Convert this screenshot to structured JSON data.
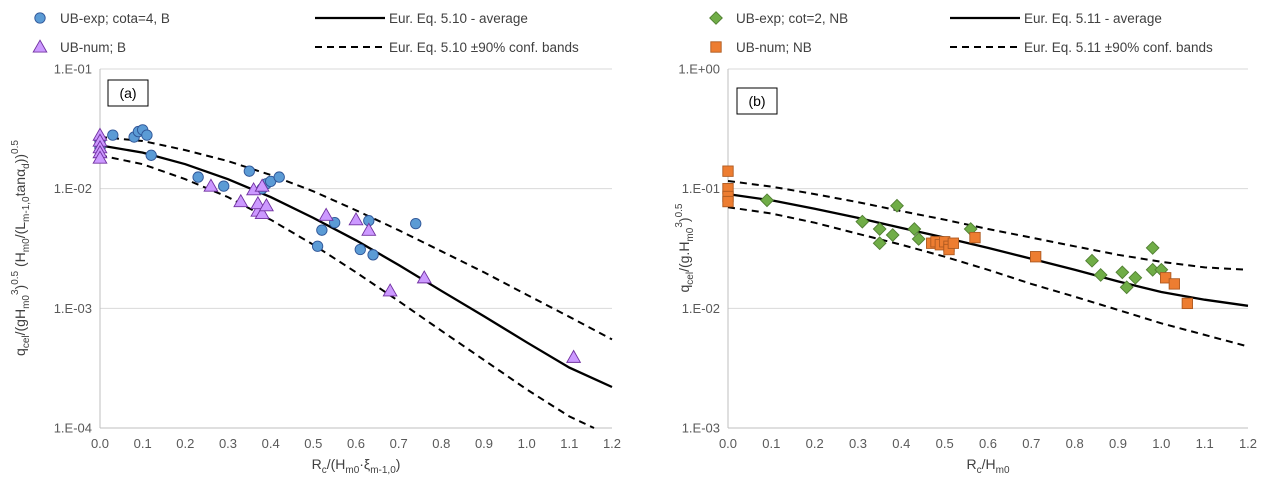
{
  "chart_data": [
    {
      "type": "scatter",
      "panel_label": "(a)",
      "xlim": [
        0,
        1.2
      ],
      "ylim": [
        0.0001,
        0.1
      ],
      "yscale": "log",
      "x_ticks": [
        "0.0",
        "0.1",
        "0.2",
        "0.3",
        "0.4",
        "0.5",
        "0.6",
        "0.7",
        "0.8",
        "0.9",
        "1.0",
        "1.1",
        "1.2"
      ],
      "y_ticks": [
        "1.E-04",
        "1.E-03",
        "1.E-02",
        "1.E-01"
      ],
      "xlabel": {
        "main": "R",
        "sub1": "c",
        "mid": "/(H",
        "sub2": "m0",
        "mid2": "·ξ",
        "sub3": "m-1,0",
        "end": ")"
      },
      "ylabel": {
        "p1": "q",
        "s1": "cel",
        "p2": "/(gH",
        "s2": "m0",
        "sup1": "3",
        "p3": ")",
        "sup2": "0.5",
        "p4": " (H",
        "s3": "m0",
        "p5": "/(L",
        "s4": "m-1,0",
        "p6": "tanα",
        "s5": "d",
        "p7": "))",
        "sup3": "0.5"
      },
      "grid": "horizontal major",
      "legend_position": "top",
      "series": [
        {
          "name": "UB-exp; cota=4, B",
          "marker": "circle",
          "color": "#5B9BD5",
          "points": [
            [
              0.0,
              0.022
            ],
            [
              0.0,
              0.025
            ],
            [
              0.03,
              0.028
            ],
            [
              0.08,
              0.027
            ],
            [
              0.09,
              0.03
            ],
            [
              0.1,
              0.031
            ],
            [
              0.11,
              0.028
            ],
            [
              0.12,
              0.019
            ],
            [
              0.23,
              0.0125
            ],
            [
              0.29,
              0.0105
            ],
            [
              0.35,
              0.014
            ],
            [
              0.38,
              0.01
            ],
            [
              0.39,
              0.011
            ],
            [
              0.4,
              0.0115
            ],
            [
              0.42,
              0.0125
            ],
            [
              0.51,
              0.0033
            ],
            [
              0.52,
              0.0045
            ],
            [
              0.55,
              0.0052
            ],
            [
              0.61,
              0.0031
            ],
            [
              0.63,
              0.0054
            ],
            [
              0.64,
              0.0028
            ],
            [
              0.74,
              0.0051
            ]
          ]
        },
        {
          "name": "UB-num; B",
          "marker": "triangle",
          "color": "#CC99FF",
          "points": [
            [
              0.0,
              0.028
            ],
            [
              0.0,
              0.025
            ],
            [
              0.0,
              0.022
            ],
            [
              0.0,
              0.02
            ],
            [
              0.0,
              0.018
            ],
            [
              0.26,
              0.0105
            ],
            [
              0.33,
              0.0078
            ],
            [
              0.36,
              0.0098
            ],
            [
              0.37,
              0.0065
            ],
            [
              0.37,
              0.0075
            ],
            [
              0.38,
              0.0062
            ],
            [
              0.38,
              0.0105
            ],
            [
              0.39,
              0.0072
            ],
            [
              0.53,
              0.006
            ],
            [
              0.6,
              0.0055
            ],
            [
              0.63,
              0.0045
            ],
            [
              0.68,
              0.0014
            ],
            [
              0.76,
              0.0018
            ],
            [
              1.11,
              0.00039
            ]
          ]
        }
      ],
      "lines": [
        {
          "name": "Eur. Eq. 5.10 - average",
          "style": "solid",
          "x": [
            0,
            0.1,
            0.2,
            0.3,
            0.4,
            0.5,
            0.6,
            0.7,
            0.8,
            0.9,
            1.0,
            1.1,
            1.2
          ],
          "y": [
            0.023,
            0.02,
            0.016,
            0.012,
            0.0085,
            0.0057,
            0.0037,
            0.0023,
            0.0014,
            0.00086,
            0.00052,
            0.00032,
            0.00022
          ]
        },
        {
          "name": "Eur. Eq. 5.10 ±90% conf. bands",
          "style": "dashed",
          "x": [
            0,
            0.1,
            0.2,
            0.3,
            0.4,
            0.5,
            0.6,
            0.7,
            0.8,
            0.9,
            1.0,
            1.1,
            1.2
          ],
          "y": [
            0.027,
            0.025,
            0.021,
            0.017,
            0.013,
            0.0095,
            0.0066,
            0.0045,
            0.003,
            0.002,
            0.0013,
            0.00085,
            0.00055
          ]
        },
        {
          "style": "dashed",
          "x": [
            0,
            0.1,
            0.2,
            0.3,
            0.4,
            0.5,
            0.6,
            0.7,
            0.8,
            0.9,
            1.0,
            1.1,
            1.2
          ],
          "y": [
            0.019,
            0.016,
            0.012,
            0.0085,
            0.0055,
            0.0034,
            0.002,
            0.00115,
            0.00065,
            0.00037,
            0.00021,
            0.000125,
            8.5e-05
          ]
        }
      ]
    },
    {
      "type": "scatter",
      "panel_label": "(b)",
      "xlim": [
        0,
        1.2
      ],
      "ylim": [
        0.001,
        1.0
      ],
      "yscale": "log",
      "x_ticks": [
        "0.0",
        "0.1",
        "0.2",
        "0.3",
        "0.4",
        "0.5",
        "0.6",
        "0.7",
        "0.8",
        "0.9",
        "1.0",
        "1.1",
        "1.2"
      ],
      "y_ticks": [
        "1.E-03",
        "1.E-02",
        "1.E-01",
        "1.E+00"
      ],
      "xlabel": {
        "main": "R",
        "sub1": "c",
        "mid": "/H",
        "sub2": "m0"
      },
      "ylabel": {
        "p1": "q",
        "s1": "cel",
        "p2": "/(g.H",
        "s2": "m0",
        "sup1": "3",
        "p3": ")",
        "sup2": "0.5"
      },
      "grid": "horizontal major",
      "legend_position": "top",
      "series": [
        {
          "name": "UB-exp; cot=2, NB",
          "marker": "diamond",
          "color": "#70AD47",
          "points": [
            [
              0.09,
              0.08
            ],
            [
              0.31,
              0.053
            ],
            [
              0.35,
              0.046
            ],
            [
              0.35,
              0.035
            ],
            [
              0.38,
              0.041
            ],
            [
              0.39,
              0.072
            ],
            [
              0.43,
              0.046
            ],
            [
              0.44,
              0.038
            ],
            [
              0.56,
              0.046
            ],
            [
              0.84,
              0.025
            ],
            [
              0.86,
              0.019
            ],
            [
              0.91,
              0.02
            ],
            [
              0.92,
              0.015
            ],
            [
              0.94,
              0.018
            ],
            [
              0.98,
              0.032
            ],
            [
              0.98,
              0.021
            ],
            [
              1.0,
              0.021
            ]
          ]
        },
        {
          "name": "UB-num; NB",
          "marker": "square",
          "color": "#ED7D31",
          "points": [
            [
              0.0,
              0.14
            ],
            [
              0.0,
              0.1
            ],
            [
              0.0,
              0.086
            ],
            [
              0.0,
              0.078
            ],
            [
              0.47,
              0.035
            ],
            [
              0.48,
              0.036
            ],
            [
              0.49,
              0.034
            ],
            [
              0.5,
              0.036
            ],
            [
              0.51,
              0.033
            ],
            [
              0.51,
              0.031
            ],
            [
              0.52,
              0.035
            ],
            [
              0.57,
              0.039
            ],
            [
              0.71,
              0.027
            ],
            [
              1.01,
              0.018
            ],
            [
              1.03,
              0.016
            ],
            [
              1.06,
              0.011
            ]
          ]
        }
      ],
      "lines": [
        {
          "name": "Eur. Eq. 5.11 - average",
          "style": "solid",
          "x": [
            0,
            0.1,
            0.2,
            0.3,
            0.4,
            0.5,
            0.6,
            0.7,
            0.8,
            0.9,
            1.0,
            1.1,
            1.2
          ],
          "y": [
            0.09,
            0.08,
            0.068,
            0.057,
            0.047,
            0.039,
            0.032,
            0.026,
            0.021,
            0.0168,
            0.0137,
            0.0118,
            0.0105
          ]
        },
        {
          "name": "Eur. Eq. 5.11 ±90% conf. bands",
          "style": "dashed",
          "x": [
            0,
            0.1,
            0.2,
            0.3,
            0.4,
            0.5,
            0.6,
            0.7,
            0.8,
            0.9,
            1.0,
            1.1,
            1.2
          ],
          "y": [
            0.116,
            0.104,
            0.09,
            0.077,
            0.065,
            0.055,
            0.046,
            0.039,
            0.033,
            0.028,
            0.0245,
            0.022,
            0.021
          ]
        },
        {
          "style": "dashed",
          "x": [
            0,
            0.1,
            0.2,
            0.3,
            0.4,
            0.5,
            0.6,
            0.7,
            0.8,
            0.9,
            1.0,
            1.1,
            1.2
          ],
          "y": [
            0.07,
            0.062,
            0.052,
            0.042,
            0.034,
            0.027,
            0.021,
            0.016,
            0.0125,
            0.0097,
            0.0075,
            0.006,
            0.0048
          ]
        }
      ]
    }
  ]
}
